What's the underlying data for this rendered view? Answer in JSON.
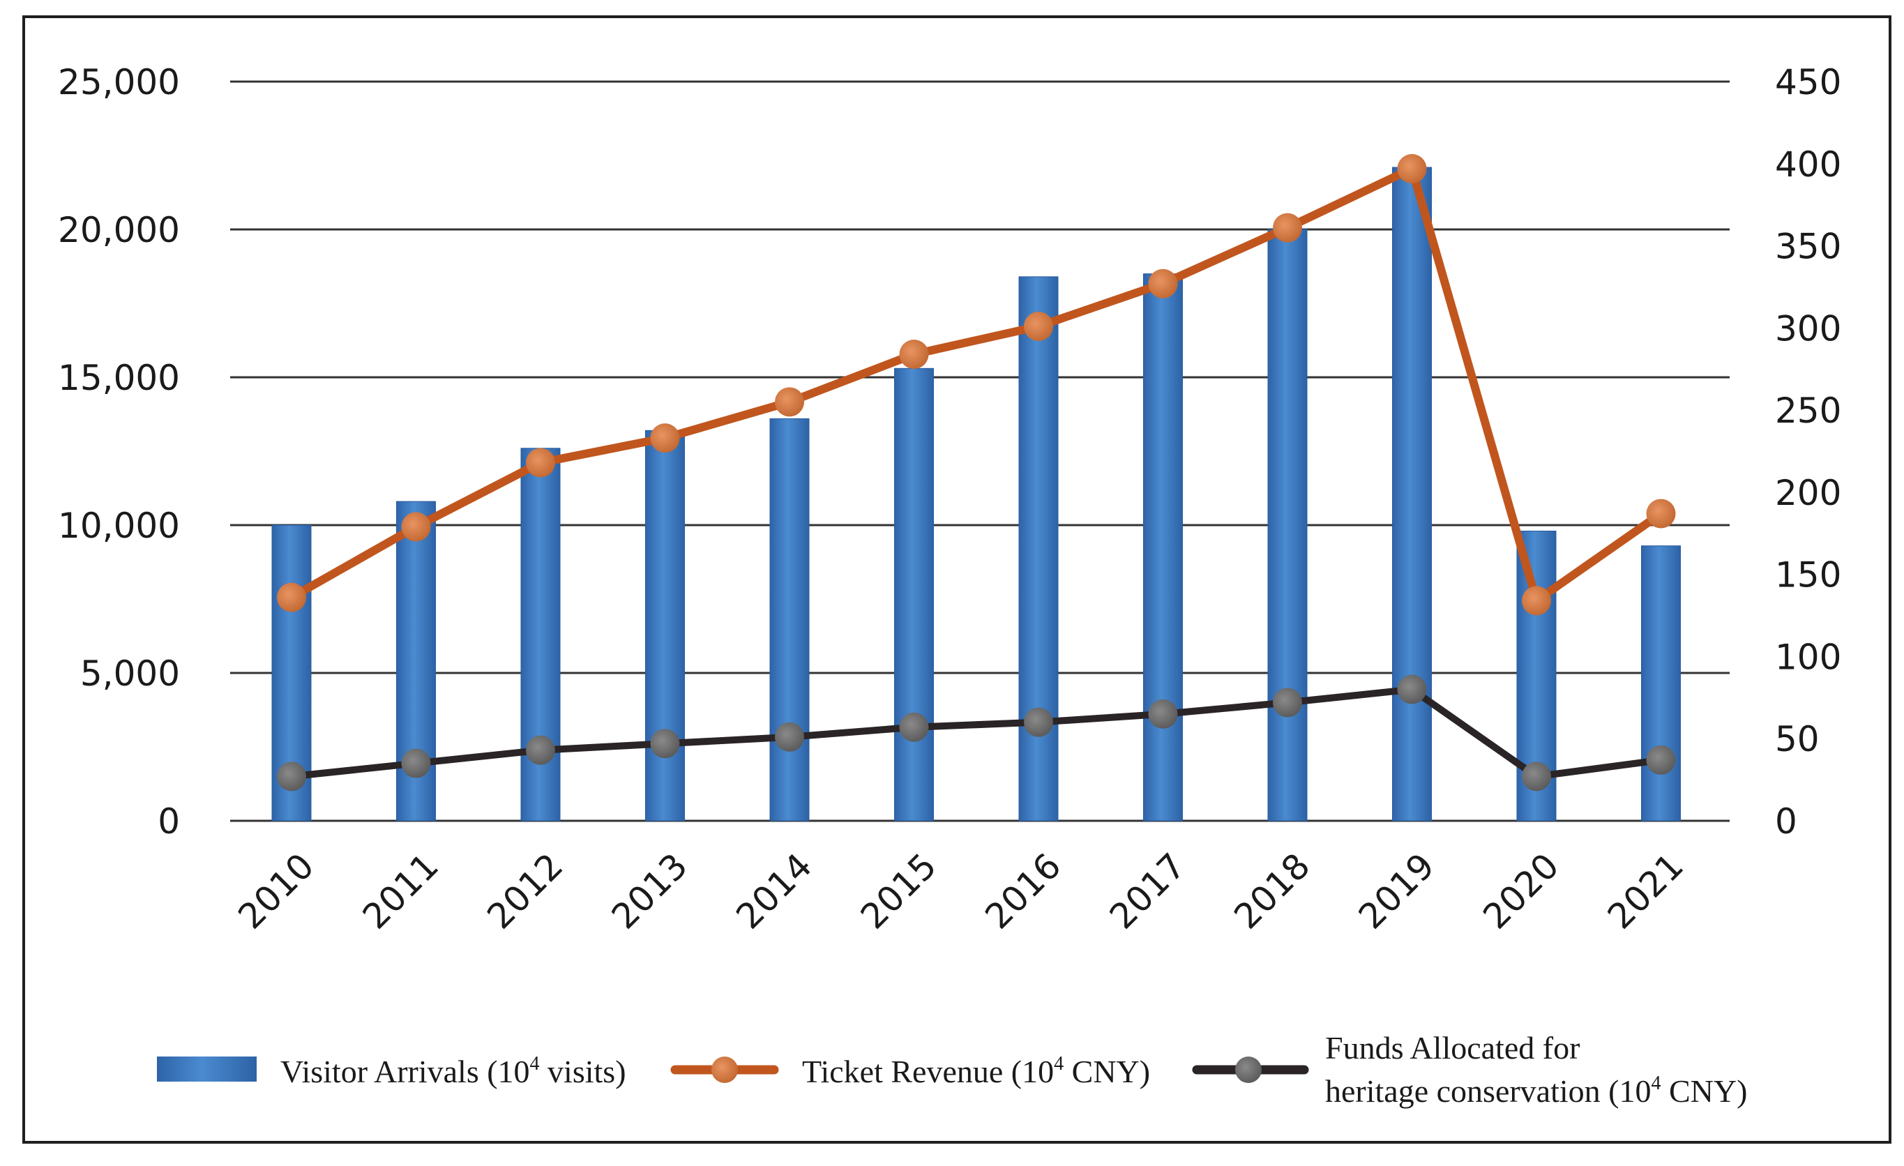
{
  "chart_data": {
    "type": "bar",
    "categories": [
      "2010",
      "2011",
      "2012",
      "2013",
      "2014",
      "2015",
      "2016",
      "2017",
      "2018",
      "2019",
      "2020",
      "2021"
    ],
    "series": [
      {
        "name": "Visitor Arrivals (10⁴ visits)",
        "legend_main": "Visitor Arrivals (10",
        "legend_sup": "4",
        "legend_tail": " visits)",
        "type": "bar",
        "axis": "left",
        "color": "#3a7bc0",
        "values": [
          10000,
          10800,
          12600,
          13200,
          13600,
          15300,
          18400,
          18500,
          20000,
          22100,
          9800,
          9300
        ]
      },
      {
        "name": "Ticket Revenue (10⁴ CNY)",
        "legend_main": "Ticket Revenue (10",
        "legend_sup": "4",
        "legend_tail": " CNY)",
        "type": "line",
        "axis": "right",
        "color": "#c0561e",
        "values": [
          136,
          179,
          218,
          233,
          255,
          284,
          301,
          327,
          361,
          397,
          134,
          187
        ]
      },
      {
        "name": "Funds Allocated for heritage conservation (10⁴ CNY)",
        "legend_line1": "Funds Allocated for",
        "legend_main": "heritage conservation (10",
        "legend_sup": "4",
        "legend_tail": " CNY)",
        "type": "line",
        "axis": "right",
        "color": "#2a2426",
        "values": [
          27,
          35,
          43,
          47,
          51,
          57,
          60,
          65,
          72,
          80,
          27,
          37
        ]
      }
    ],
    "y_left": {
      "ylim": [
        0,
        25000
      ],
      "ticks": [
        "25,000",
        "20,000",
        "15,000",
        "10,000",
        "5,000",
        "0"
      ],
      "values": [
        25000,
        20000,
        15000,
        10000,
        5000,
        0
      ]
    },
    "y_right": {
      "ylim": [
        0,
        450
      ],
      "ticks": [
        "450",
        "400",
        "350",
        "300",
        "250",
        "200",
        "150",
        "100",
        "50",
        "0"
      ],
      "values": [
        450,
        400,
        350,
        300,
        250,
        200,
        150,
        100,
        50,
        0
      ]
    },
    "title": "",
    "xlabel": "",
    "ylabel": "",
    "grid": true,
    "legend_position": "bottom"
  }
}
